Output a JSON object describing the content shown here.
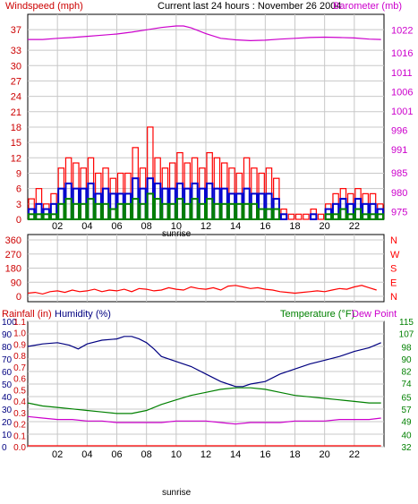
{
  "header": {
    "title": "Current last 24 hours : November 26 2004"
  },
  "colors": {
    "red": "#ff0000",
    "darkred": "#cc0000",
    "blue": "#0000cc",
    "green": "#008000",
    "magenta": "#cc00cc",
    "navy": "#000080",
    "grid": "#c8c8c8",
    "frame": "#000000"
  },
  "chart_data": [
    {
      "type": "bar",
      "id": "wind",
      "title": "Current last 24 hours : November 26 2004",
      "ylabel": "Windspeed (mph)",
      "y2label": "Barometer (mb)",
      "ylim": [
        0,
        40
      ],
      "y2lim": [
        973,
        1026
      ],
      "y_ticks": [
        "0",
        "3",
        "6",
        "9",
        "12",
        "15",
        "18",
        "21",
        "24",
        "27",
        "30",
        "33",
        "37"
      ],
      "y2_ticks": [
        "975",
        "980",
        "985",
        "991",
        "996",
        "1001",
        "1006",
        "1011",
        "1016",
        "1022"
      ],
      "x_ticks": [
        "02",
        "04",
        "06",
        "08",
        "10",
        "12",
        "14",
        "16",
        "18",
        "20",
        "22"
      ],
      "x_tick_hours": [
        2,
        4,
        6,
        8,
        10,
        12,
        14,
        16,
        18,
        20,
        22
      ],
      "marker_label": "sunrise",
      "marker_hour": 7.8,
      "series": [
        {
          "name": "Windspeed (mph)",
          "kind": "gust",
          "hours": [
            0,
            0.5,
            1,
            1.5,
            2,
            2.5,
            3,
            3.5,
            4,
            4.5,
            5,
            5.5,
            6,
            6.5,
            7,
            7.5,
            8,
            8.5,
            9,
            9.5,
            10,
            10.5,
            11,
            11.5,
            12,
            12.5,
            13,
            13.5,
            14,
            14.5,
            15,
            15.5,
            16,
            16.5,
            17,
            17.5,
            18,
            18.5,
            19,
            19.5,
            20,
            20.5,
            21,
            21.5,
            22,
            22.5,
            23,
            23.5
          ],
          "values": [
            4,
            6,
            3,
            5,
            10,
            12,
            11,
            10,
            12,
            9,
            10,
            8,
            9,
            9,
            14,
            10,
            18,
            12,
            10,
            11,
            13,
            11,
            12,
            10,
            13,
            12,
            11,
            10,
            9,
            12,
            10,
            9,
            10,
            8,
            2,
            1,
            1,
            1,
            2,
            1,
            3,
            5,
            6,
            5,
            6,
            5,
            5,
            3
          ]
        },
        {
          "name": "avg",
          "kind": "avg",
          "hours": [
            0,
            0.5,
            1,
            1.5,
            2,
            2.5,
            3,
            3.5,
            4,
            4.5,
            5,
            5.5,
            6,
            6.5,
            7,
            7.5,
            8,
            8.5,
            9,
            9.5,
            10,
            10.5,
            11,
            11.5,
            12,
            12.5,
            13,
            13.5,
            14,
            14.5,
            15,
            15.5,
            16,
            16.5,
            17,
            17.5,
            18,
            18.5,
            19,
            19.5,
            20,
            20.5,
            21,
            21.5,
            22,
            22.5,
            23,
            23.5
          ],
          "values": [
            2,
            3,
            2,
            3,
            6,
            7,
            6,
            6,
            7,
            5,
            6,
            5,
            5,
            5,
            8,
            6,
            8,
            7,
            6,
            6,
            7,
            6,
            7,
            6,
            7,
            6,
            6,
            5,
            5,
            6,
            5,
            5,
            5,
            4,
            1,
            0,
            0,
            0,
            1,
            0,
            2,
            3,
            4,
            3,
            4,
            3,
            3,
            2
          ]
        },
        {
          "name": "direction",
          "kind": "low",
          "hours": [
            0,
            0.5,
            1,
            1.5,
            2,
            2.5,
            3,
            3.5,
            4,
            4.5,
            5,
            5.5,
            6,
            6.5,
            7,
            7.5,
            8,
            8.5,
            9,
            9.5,
            10,
            10.5,
            11,
            11.5,
            12,
            12.5,
            13,
            13.5,
            14,
            14.5,
            15,
            15.5,
            16,
            16.5,
            17,
            17.5,
            18,
            18.5,
            19,
            19.5,
            20,
            20.5,
            21,
            21.5,
            22,
            22.5,
            23,
            23.5
          ],
          "values": [
            1,
            1,
            1,
            1,
            3,
            4,
            3,
            3,
            4,
            3,
            3,
            2,
            3,
            3,
            4,
            3,
            5,
            4,
            3,
            3,
            4,
            3,
            4,
            3,
            4,
            3,
            3,
            3,
            3,
            3,
            3,
            2,
            2,
            2,
            0,
            0,
            0,
            0,
            0,
            0,
            1,
            1,
            2,
            1,
            2,
            1,
            1,
            1
          ]
        },
        {
          "name": "Barometer (mb)",
          "kind": "baro",
          "hours": [
            0,
            1,
            2,
            3,
            4,
            5,
            6,
            7,
            8,
            9,
            10,
            10.5,
            11,
            12,
            13,
            14,
            15,
            16,
            17,
            18,
            19,
            20,
            21,
            22,
            23,
            23.8
          ],
          "values": [
            1019.5,
            1019.5,
            1019.8,
            1020,
            1020.3,
            1020.6,
            1020.9,
            1021.4,
            1022,
            1022.6,
            1023,
            1023,
            1022.5,
            1021,
            1019.8,
            1019.4,
            1019.2,
            1019.3,
            1019.6,
            1019.8,
            1020,
            1020.1,
            1020,
            1019.9,
            1019.6,
            1019.5
          ]
        }
      ]
    },
    {
      "type": "line",
      "id": "direction",
      "ylabel_left_ticks": [
        "360",
        "270",
        "180",
        "90",
        "0"
      ],
      "ylim": [
        0,
        360
      ],
      "compass": [
        "N",
        "W",
        "S",
        "E",
        "N"
      ],
      "series": [
        {
          "name": "Wind direction",
          "hours": [
            0,
            0.5,
            1,
            1.5,
            2,
            2.5,
            3,
            3.5,
            4,
            4.5,
            5,
            5.5,
            6,
            6.5,
            7,
            7.5,
            8,
            8.5,
            9,
            9.5,
            10,
            10.5,
            11,
            11.5,
            12,
            12.5,
            13,
            13.5,
            14,
            14.5,
            15,
            15.5,
            16,
            16.5,
            17,
            17.5,
            18,
            18.5,
            19,
            19.5,
            20,
            20.5,
            21,
            21.5,
            22,
            22.5,
            23,
            23.5
          ],
          "values": [
            20,
            25,
            15,
            30,
            35,
            25,
            40,
            30,
            35,
            45,
            30,
            40,
            35,
            45,
            30,
            50,
            45,
            35,
            40,
            55,
            45,
            40,
            60,
            50,
            45,
            55,
            40,
            65,
            70,
            60,
            50,
            55,
            45,
            40,
            30,
            25,
            20,
            25,
            30,
            35,
            30,
            40,
            50,
            45,
            60,
            70,
            55,
            40
          ]
        }
      ]
    },
    {
      "type": "line",
      "id": "temperature",
      "ylabel_left": "Rainfall (in)",
      "ylabel_humidity": "Humidity (%)",
      "ylabel_right": "Temperature (°F)",
      "ylabel_dew": "Dew Point",
      "rain_ticks": [
        "1.1",
        "1.0",
        "0.9",
        "0.8",
        "0.7",
        "0.6",
        "0.5",
        "0.4",
        "0.3",
        "0.2",
        "0.1",
        "0.0"
      ],
      "humidity_ticks": [
        "100",
        "90",
        "80",
        "70",
        "60",
        "50",
        "40",
        "30",
        "20",
        "10",
        "0"
      ],
      "temp_ticks": [
        "115",
        "107",
        "98",
        "90",
        "82",
        "74",
        "65",
        "57",
        "49",
        "40",
        "32"
      ],
      "humidity_lim": [
        0,
        100
      ],
      "temp_lim": [
        32,
        115
      ],
      "x_ticks": [
        "02",
        "04",
        "06",
        "08",
        "10",
        "12",
        "14",
        "16",
        "18",
        "20",
        "22"
      ],
      "marker_label": "sunrise",
      "series": [
        {
          "name": "Humidity (%)",
          "axis": "humidity",
          "hours": [
            0,
            1,
            2,
            2.8,
            3.4,
            4,
            5,
            6,
            6.5,
            7,
            7.5,
            8,
            8.5,
            9,
            10,
            11,
            12,
            13,
            13.5,
            14,
            14.5,
            15,
            16,
            17,
            18,
            19,
            20,
            21,
            22,
            23,
            23.8
          ],
          "values": [
            80,
            82,
            83,
            81,
            78,
            82,
            85,
            86,
            88,
            88,
            86,
            83,
            78,
            72,
            68,
            64,
            58,
            52,
            50,
            48,
            48,
            50,
            52,
            58,
            62,
            66,
            69,
            72,
            76,
            79,
            83
          ]
        },
        {
          "name": "Temperature (°F)",
          "axis": "temp",
          "hours": [
            0,
            1,
            2,
            3,
            4,
            5,
            6,
            7,
            8,
            9,
            10,
            11,
            12,
            13,
            14,
            15,
            16,
            17,
            18,
            19,
            20,
            21,
            22,
            23,
            23.8
          ],
          "values": [
            61,
            59,
            58,
            57,
            56,
            55,
            54,
            54,
            56,
            60,
            63,
            66,
            68,
            70,
            71,
            71,
            70,
            68,
            66,
            65,
            64,
            63,
            62,
            61,
            61
          ]
        },
        {
          "name": "Dew Point",
          "axis": "temp",
          "hours": [
            0,
            1,
            2,
            3,
            4,
            5,
            6,
            7,
            8,
            9,
            10,
            11,
            12,
            13,
            14,
            15,
            16,
            17,
            18,
            19,
            20,
            21,
            22,
            23,
            23.8
          ],
          "values": [
            52,
            51,
            50,
            50,
            49,
            49,
            48,
            48,
            48,
            48,
            49,
            49,
            49,
            48,
            47,
            48,
            48,
            48,
            49,
            49,
            49,
            50,
            50,
            50,
            51
          ]
        },
        {
          "name": "Rainfall (in)",
          "axis": "rain",
          "hours": [
            0,
            23.8
          ],
          "values": [
            0,
            0
          ]
        }
      ]
    }
  ]
}
